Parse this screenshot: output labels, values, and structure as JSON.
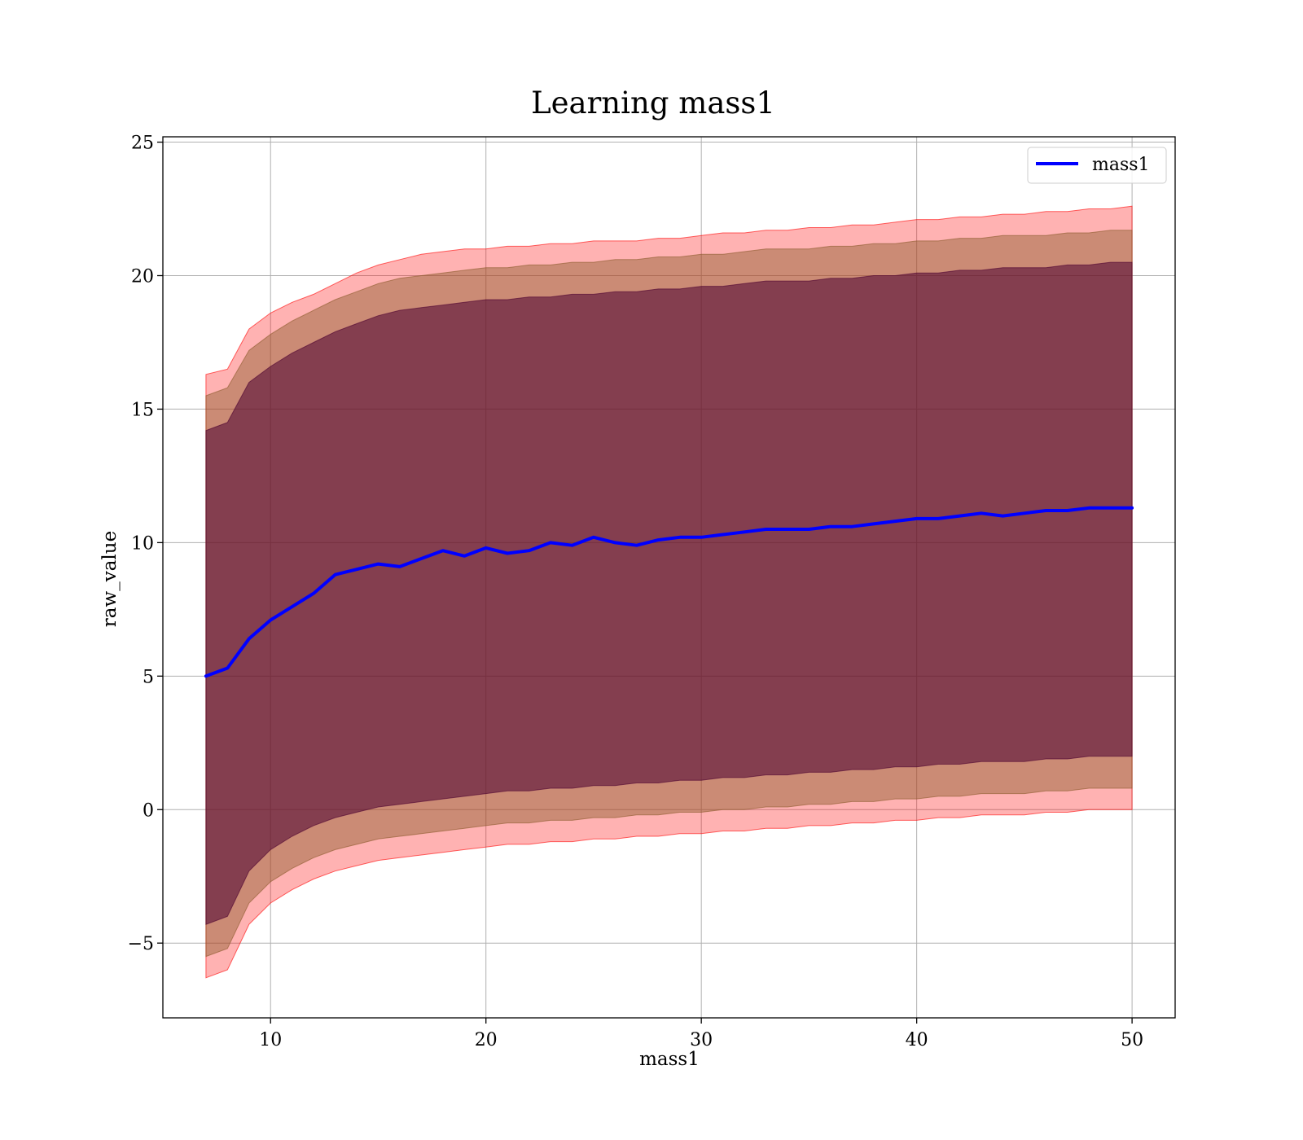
{
  "chart_data": {
    "type": "line",
    "title": "Learning mass1",
    "xlabel": "mass1",
    "ylabel": "raw_value",
    "xlim": [
      5,
      52
    ],
    "ylim": [
      -7.8,
      25.2
    ],
    "xticks": [
      10,
      20,
      30,
      40,
      50
    ],
    "yticks": [
      -5,
      0,
      5,
      10,
      15,
      20,
      25
    ],
    "x_tick_labels": [
      "10",
      "20",
      "30",
      "40",
      "50"
    ],
    "y_tick_labels": [
      "−5",
      "0",
      "5",
      "10",
      "15",
      "20",
      "25"
    ],
    "grid": true,
    "legend": {
      "position": "top-right",
      "entries": [
        "mass1"
      ]
    },
    "colors": {
      "line": "#0000ff",
      "band_outer": "#ff0000",
      "band_middle": "#8b5a2b",
      "band_inner": "#4b0030",
      "grid": "#b0b0b0"
    },
    "series": [
      {
        "name": "mass1",
        "x": [
          7,
          8,
          9,
          10,
          11,
          12,
          13,
          14,
          15,
          16,
          17,
          18,
          19,
          20,
          21,
          22,
          23,
          24,
          25,
          26,
          27,
          28,
          29,
          30,
          31,
          32,
          33,
          34,
          35,
          36,
          37,
          38,
          39,
          40,
          41,
          42,
          43,
          44,
          45,
          46,
          47,
          48,
          49,
          50
        ],
        "y": [
          5.0,
          5.3,
          6.4,
          7.1,
          7.6,
          8.1,
          8.8,
          9.0,
          9.2,
          9.1,
          9.4,
          9.7,
          9.5,
          9.8,
          9.6,
          9.7,
          10.0,
          9.9,
          10.2,
          10.0,
          9.9,
          10.1,
          10.2,
          10.2,
          10.3,
          10.4,
          10.5,
          10.5,
          10.5,
          10.6,
          10.6,
          10.7,
          10.8,
          10.9,
          10.9,
          11.0,
          11.1,
          11.0,
          11.1,
          11.2,
          11.2,
          11.3,
          11.3,
          11.3
        ]
      }
    ],
    "bands": [
      {
        "label": "outer",
        "upper": [
          16.3,
          16.5,
          18.0,
          18.6,
          19.0,
          19.3,
          19.7,
          20.1,
          20.4,
          20.6,
          20.8,
          20.9,
          21.0,
          21.0,
          21.1,
          21.1,
          21.2,
          21.2,
          21.3,
          21.3,
          21.3,
          21.4,
          21.4,
          21.5,
          21.6,
          21.6,
          21.7,
          21.7,
          21.8,
          21.8,
          21.9,
          21.9,
          22.0,
          22.1,
          22.1,
          22.2,
          22.2,
          22.3,
          22.3,
          22.4,
          22.4,
          22.5,
          22.5,
          22.6
        ],
        "lower": [
          -6.3,
          -6.0,
          -4.3,
          -3.5,
          -3.0,
          -2.6,
          -2.3,
          -2.1,
          -1.9,
          -1.8,
          -1.7,
          -1.6,
          -1.5,
          -1.4,
          -1.3,
          -1.3,
          -1.2,
          -1.2,
          -1.1,
          -1.1,
          -1.0,
          -1.0,
          -0.9,
          -0.9,
          -0.8,
          -0.8,
          -0.7,
          -0.7,
          -0.6,
          -0.6,
          -0.5,
          -0.5,
          -0.4,
          -0.4,
          -0.3,
          -0.3,
          -0.2,
          -0.2,
          -0.2,
          -0.1,
          -0.1,
          0.0,
          0.0,
          0.0
        ]
      },
      {
        "label": "middle",
        "upper": [
          15.5,
          15.8,
          17.2,
          17.8,
          18.3,
          18.7,
          19.1,
          19.4,
          19.7,
          19.9,
          20.0,
          20.1,
          20.2,
          20.3,
          20.3,
          20.4,
          20.4,
          20.5,
          20.5,
          20.6,
          20.6,
          20.7,
          20.7,
          20.8,
          20.8,
          20.9,
          21.0,
          21.0,
          21.0,
          21.1,
          21.1,
          21.2,
          21.2,
          21.3,
          21.3,
          21.4,
          21.4,
          21.5,
          21.5,
          21.5,
          21.6,
          21.6,
          21.7,
          21.7
        ],
        "lower": [
          -5.5,
          -5.2,
          -3.5,
          -2.7,
          -2.2,
          -1.8,
          -1.5,
          -1.3,
          -1.1,
          -1.0,
          -0.9,
          -0.8,
          -0.7,
          -0.6,
          -0.5,
          -0.5,
          -0.4,
          -0.4,
          -0.3,
          -0.3,
          -0.2,
          -0.2,
          -0.1,
          -0.1,
          0.0,
          0.0,
          0.1,
          0.1,
          0.2,
          0.2,
          0.3,
          0.3,
          0.4,
          0.4,
          0.5,
          0.5,
          0.6,
          0.6,
          0.6,
          0.7,
          0.7,
          0.8,
          0.8,
          0.8
        ]
      },
      {
        "label": "inner",
        "upper": [
          14.2,
          14.5,
          16.0,
          16.6,
          17.1,
          17.5,
          17.9,
          18.2,
          18.5,
          18.7,
          18.8,
          18.9,
          19.0,
          19.1,
          19.1,
          19.2,
          19.2,
          19.3,
          19.3,
          19.4,
          19.4,
          19.5,
          19.5,
          19.6,
          19.6,
          19.7,
          19.8,
          19.8,
          19.8,
          19.9,
          19.9,
          20.0,
          20.0,
          20.1,
          20.1,
          20.2,
          20.2,
          20.3,
          20.3,
          20.3,
          20.4,
          20.4,
          20.5,
          20.5
        ],
        "lower": [
          -4.3,
          -4.0,
          -2.3,
          -1.5,
          -1.0,
          -0.6,
          -0.3,
          -0.1,
          0.1,
          0.2,
          0.3,
          0.4,
          0.5,
          0.6,
          0.7,
          0.7,
          0.8,
          0.8,
          0.9,
          0.9,
          1.0,
          1.0,
          1.1,
          1.1,
          1.2,
          1.2,
          1.3,
          1.3,
          1.4,
          1.4,
          1.5,
          1.5,
          1.6,
          1.6,
          1.7,
          1.7,
          1.8,
          1.8,
          1.8,
          1.9,
          1.9,
          2.0,
          2.0,
          2.0
        ]
      }
    ]
  }
}
